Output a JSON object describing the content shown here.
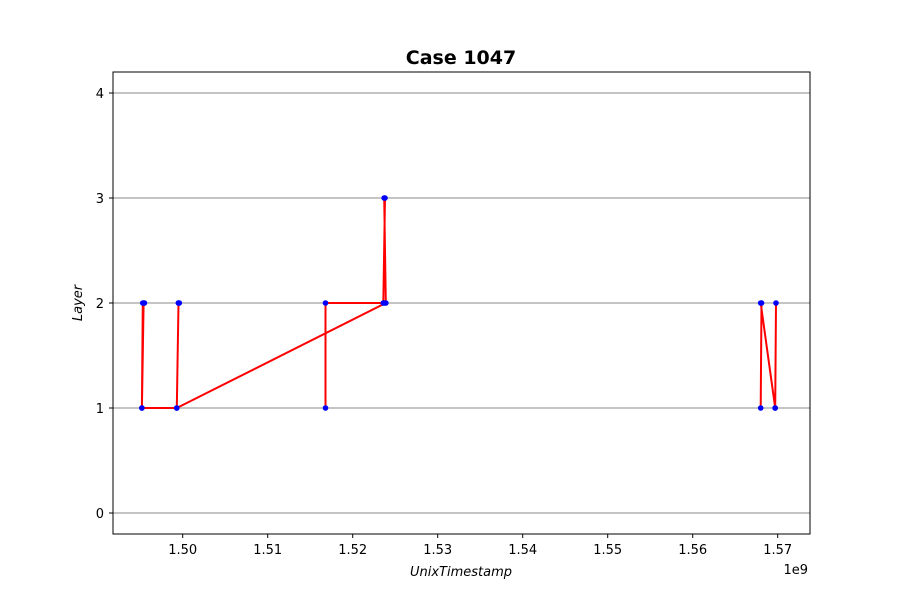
{
  "chart_data": {
    "type": "line",
    "title": "Case 1047",
    "xlabel": "UnixTimestamp",
    "ylabel": "Layer",
    "x_offset_label": "1e9",
    "x_scale": 1000000000,
    "xlim": [
      1.4918,
      1.5738
    ],
    "ylim": [
      -0.2,
      4.2
    ],
    "x_ticks": [
      1.5,
      1.51,
      1.52,
      1.53,
      1.54,
      1.55,
      1.56,
      1.57
    ],
    "x_tick_labels": [
      "1.50",
      "1.51",
      "1.52",
      "1.53",
      "1.54",
      "1.55",
      "1.56",
      "1.57"
    ],
    "y_ticks": [
      0,
      1,
      2,
      3,
      4
    ],
    "y_tick_labels": [
      "0",
      "1",
      "2",
      "3",
      "4"
    ],
    "grid": "horizontal",
    "line_color": "#ff0000",
    "marker_color": "#0000ff",
    "series": [
      {
        "x": [
          1.4952,
          1.4954,
          1.4955,
          1.4953,
          1.4952,
          1.4993,
          1.4995,
          1.4996,
          1.4995,
          1.4993,
          1.5239,
          1.5237,
          1.5238,
          1.5236,
          1.5237,
          1.5168,
          1.5168
        ],
        "y": [
          1,
          2,
          2,
          2,
          1,
          1,
          2,
          2,
          2,
          1,
          2,
          3,
          3,
          2,
          2,
          2,
          1
        ]
      },
      {
        "x": [
          1.568,
          1.5681,
          1.568,
          1.5697,
          1.5698,
          1.5697
        ],
        "y": [
          1,
          2,
          2,
          1,
          2,
          1
        ]
      }
    ]
  }
}
